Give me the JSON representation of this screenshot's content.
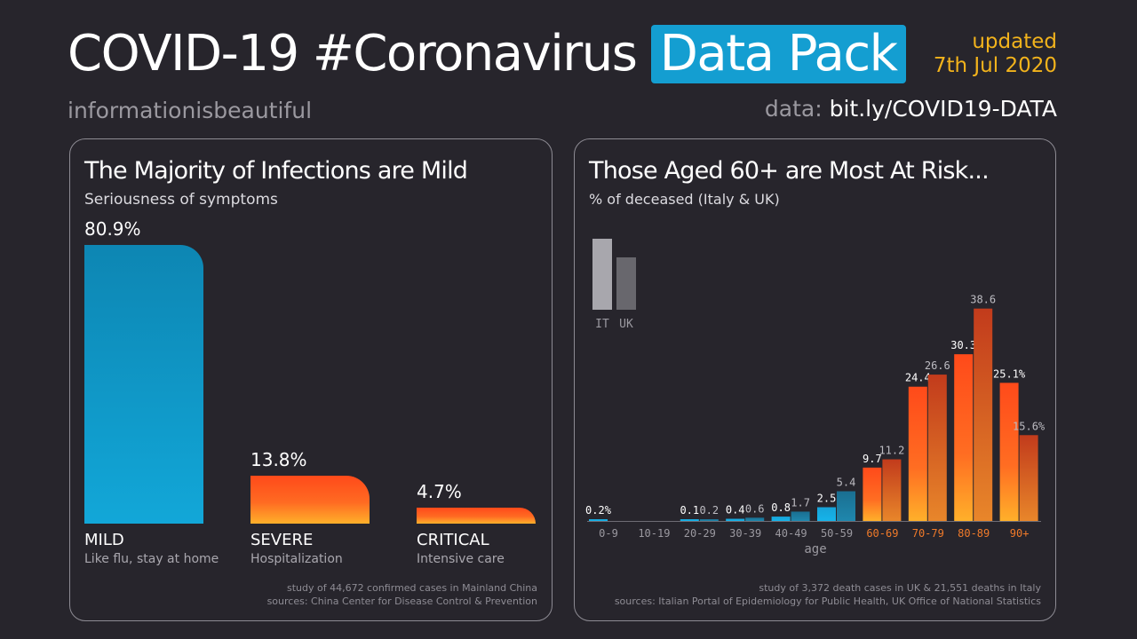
{
  "header": {
    "title_main": "COVID-19 #Coronavirus",
    "title_pill": "Data Pack",
    "updated_label": "updated",
    "updated_date": "7th Jul 2020",
    "brand": "informationisbeautiful",
    "data_label": "data:",
    "data_url": "bit.ly/COVID19-DATA"
  },
  "colors": {
    "background": "#27252c",
    "accent_blue": "#149ed1",
    "accent_yellow": "#f2b31c",
    "orange_age": "#f07a2a"
  },
  "chart_data": [
    {
      "type": "bar",
      "title": "The Majority of Infections are Mild",
      "subtitle": "Seriousness of symptoms",
      "categories": [
        "MILD",
        "SEVERE",
        "CRITICAL"
      ],
      "descriptions": [
        "Like flu, stay at home",
        "Hospitalization",
        "Intensive care"
      ],
      "values": [
        80.9,
        13.8,
        4.7
      ],
      "value_labels": [
        "80.9%",
        "13.8%",
        "4.7%"
      ],
      "footnote": [
        "study of 44,672 confirmed cases in Mainland China",
        "sources: China Center for Disease Control & Prevention"
      ]
    },
    {
      "type": "bar",
      "title": "Those Aged 60+ are Most At Risk...",
      "subtitle": "% of deceased (Italy & UK)",
      "xlabel": "age",
      "legend": [
        "IT",
        "UK"
      ],
      "categories": [
        "0-9",
        "10-19",
        "20-29",
        "30-39",
        "40-49",
        "50-59",
        "60-69",
        "70-79",
        "80-89",
        "90+"
      ],
      "series": [
        {
          "name": "IT",
          "values": [
            0.2,
            0,
            0.1,
            0.4,
            0.8,
            2.5,
            9.7,
            24.4,
            30.3,
            25.1
          ],
          "labels": [
            "0.2%",
            "",
            "0.1",
            "0.4",
            "0.8",
            "2.5",
            "9.7",
            "24.4",
            "30.3",
            "25.1%"
          ]
        },
        {
          "name": "UK",
          "values": [
            0,
            0,
            0.2,
            0.6,
            1.7,
            5.4,
            11.2,
            26.6,
            38.6,
            15.6
          ],
          "labels": [
            "",
            "",
            "0.2",
            "0.6",
            "1.7",
            "5.4",
            "11.2",
            "26.6",
            "38.6",
            "15.6%"
          ]
        }
      ],
      "footnote": [
        "study of 3,372 death cases in UK & 21,551 deaths in Italy",
        "sources: Italian Portal of Epidemiology for Public Health, UK Office of National Statistics"
      ]
    }
  ]
}
